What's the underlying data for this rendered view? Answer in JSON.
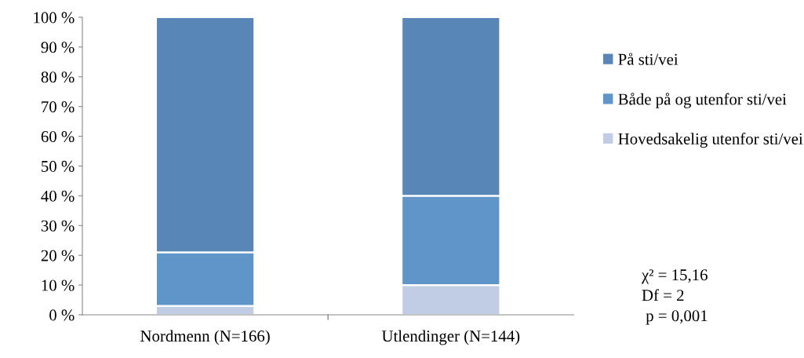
{
  "chart_data": {
    "type": "bar",
    "stacked": true,
    "categories": [
      "Nordmenn (N=166)",
      "Utlendinger (N=144)"
    ],
    "series": [
      {
        "name": "Hovedsakelig utenfor sti/vei",
        "color": "#c1cde5",
        "values": [
          3,
          10
        ]
      },
      {
        "name": "Både på og utenfor sti/vei",
        "color": "#5f95c9",
        "values": [
          18,
          30
        ]
      },
      {
        "name": "På sti/vei",
        "color": "#5886b7",
        "values": [
          79,
          60
        ]
      }
    ],
    "ylim": [
      0,
      100
    ],
    "yticks": [
      {
        "value": 0,
        "label": "0 %"
      },
      {
        "value": 10,
        "label": "10 %"
      },
      {
        "value": 20,
        "label": "20 %"
      },
      {
        "value": 30,
        "label": "30 %"
      },
      {
        "value": 40,
        "label": "40 %"
      },
      {
        "value": 50,
        "label": "50 %"
      },
      {
        "value": 60,
        "label": "60 %"
      },
      {
        "value": 70,
        "label": "70 %"
      },
      {
        "value": 80,
        "label": "80 %"
      },
      {
        "value": 90,
        "label": "90 %"
      },
      {
        "value": 100,
        "label": "100 %"
      }
    ],
    "grid": false,
    "legend": "right",
    "annotations": [
      "χ² = 15,16",
      "Df = 2",
      " p = 0,001"
    ]
  }
}
